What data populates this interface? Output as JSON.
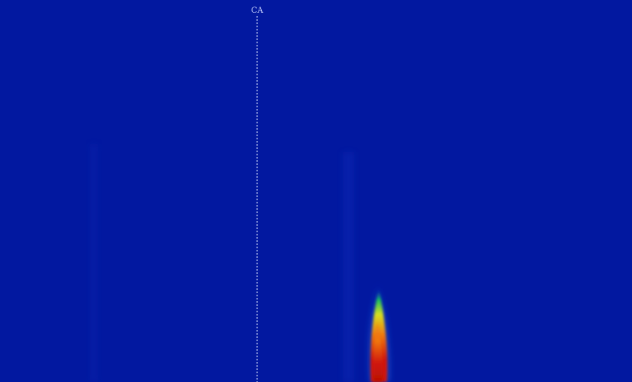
{
  "chart_data": {
    "type": "heatmap",
    "title": "",
    "xlabel": "",
    "ylabel": "",
    "grid": false,
    "legend": "none",
    "background_color": "#0218a0",
    "colormap": [
      "#0218a0",
      "#1a4fd0",
      "#12c060",
      "#d8e020",
      "#f07810",
      "#d01808"
    ],
    "marker": {
      "label": "CA",
      "style": "dashed-vertical-line",
      "color": "#dfe6ff"
    },
    "hot_spot": {
      "description_values": {
        "peak_intensity": 1.0,
        "top_intensity": 0.35
      }
    }
  }
}
